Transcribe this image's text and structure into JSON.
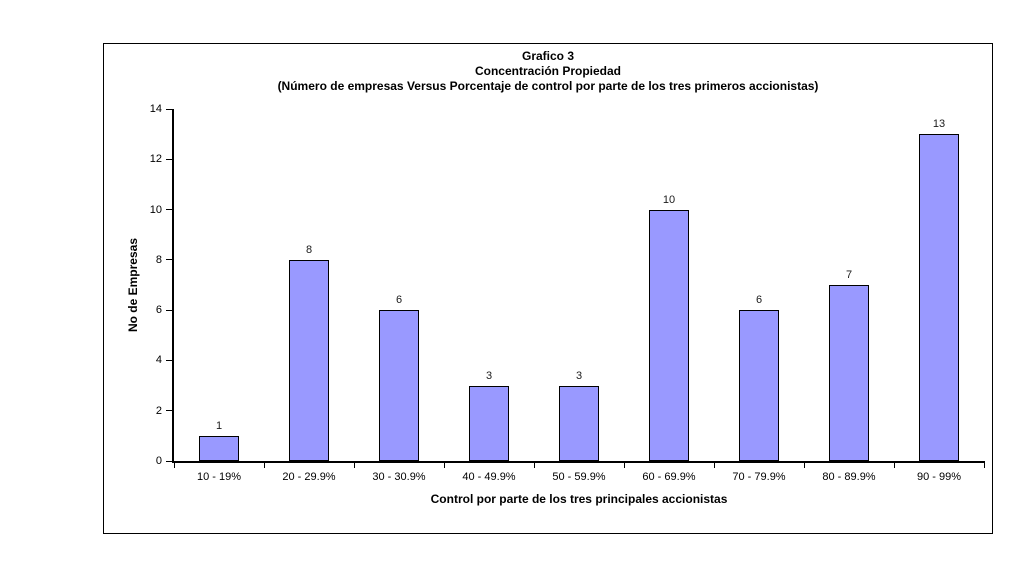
{
  "page": {
    "background_color": "#ffffff"
  },
  "chart_data": {
    "type": "bar",
    "title_lines": [
      "Grafico 3",
      "Concentración Propiedad",
      "(Número de empresas Versus Porcentaje de control por parte de los tres primeros accionistas)"
    ],
    "categories": [
      "10 - 19%",
      "20 - 29.9%",
      "30 - 30.9%",
      "40 - 49.9%",
      "50 - 59.9%",
      "60 - 69.9%",
      "70 - 79.9%",
      "80 - 89.9%",
      "90 - 99%"
    ],
    "values": [
      1,
      8,
      6,
      3,
      3,
      10,
      6,
      7,
      13
    ],
    "data_labels": [
      "1",
      "8",
      "6",
      "3",
      "3",
      "10",
      "6",
      "7",
      "13"
    ],
    "xlabel": "Control por parte de los tres principales accionistas",
    "ylabel": "No de Empresas",
    "ylim": [
      0,
      14
    ],
    "yticks": [
      0,
      2,
      4,
      6,
      8,
      10,
      12,
      14
    ],
    "grid": false,
    "legend": "none",
    "bar_color": "#9999FF",
    "bar_border_color": "#000000",
    "axis_color": "#000000",
    "text_color": "#000000"
  }
}
